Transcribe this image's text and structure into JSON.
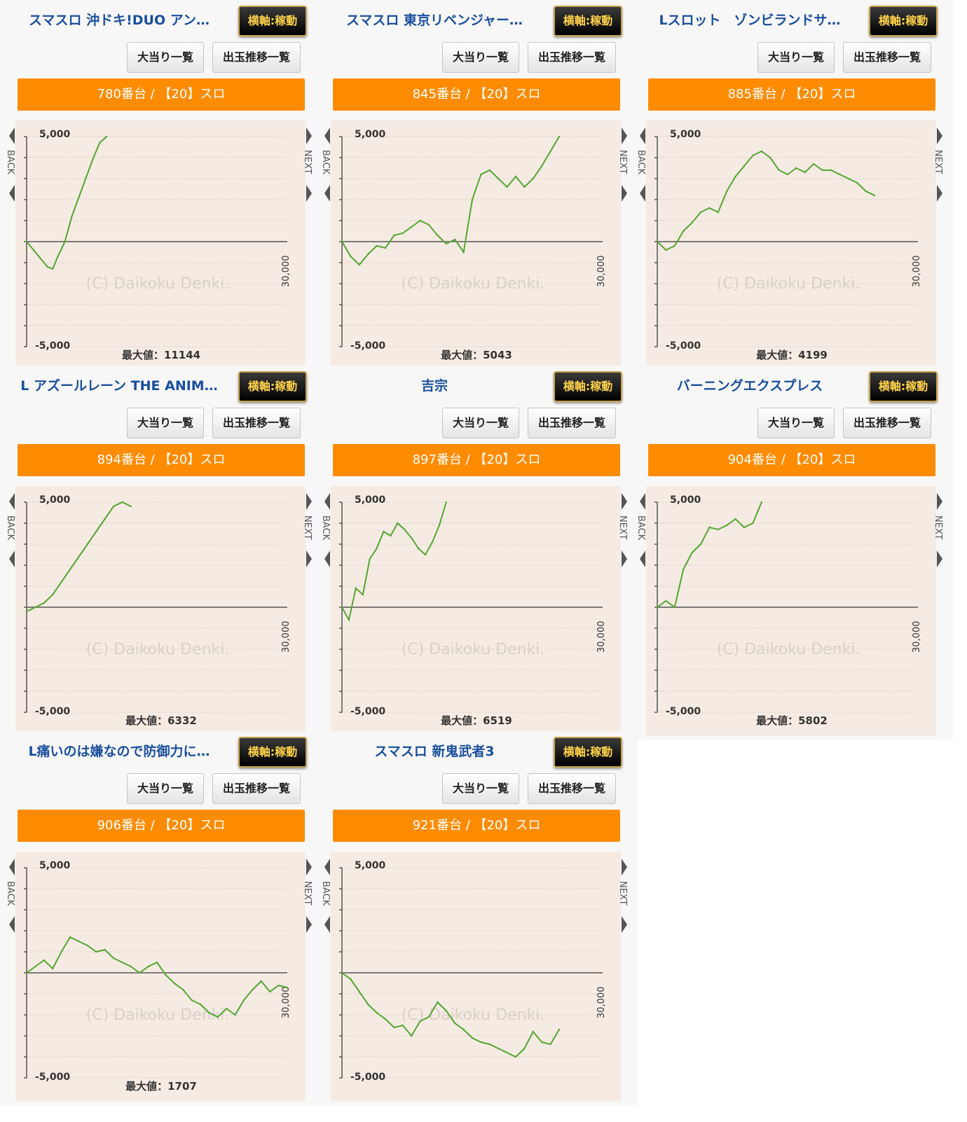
{
  "labels": {
    "axis_toggle": "横軸:稼動",
    "hits_list": "大当り一覧",
    "transition_list": "出玉推移一覧",
    "back": "BACK",
    "next": "NEXT",
    "watermark": "(C) Daikoku Denki.",
    "y_max": "5,000",
    "y_min": "-5,000",
    "x_max": "30,000",
    "max_value_prefix": "最大値："
  },
  "colors": {
    "accent_orange": "#ff8c00",
    "title_blue": "#1a4f9c",
    "line_green": "#55a532",
    "graph_bg": "#f5ebe2"
  },
  "machines": [
    {
      "title": "スマスロ 沖ドキ!DUO アン…",
      "machine_no": "780番台 / 【20】スロ",
      "max_value": "11144"
    },
    {
      "title": "スマスロ 東京リベンジャー…",
      "machine_no": "845番台 / 【20】スロ",
      "max_value": "5043"
    },
    {
      "title": "Lスロット　ゾンビランドサ…",
      "machine_no": "885番台 / 【20】スロ",
      "max_value": "4199"
    },
    {
      "title": "L アズールレーン THE ANIM…",
      "machine_no": "894番台 / 【20】スロ",
      "max_value": "6332"
    },
    {
      "title": "吉宗",
      "machine_no": "897番台 / 【20】スロ",
      "max_value": "6519"
    },
    {
      "title": "バーニングエクスプレス",
      "machine_no": "904番台 / 【20】スロ",
      "max_value": "5802"
    },
    {
      "title": "L痛いのは嫌なので防御力に…",
      "machine_no": "906番台 / 【20】スロ",
      "max_value": "1707"
    },
    {
      "title": "スマスロ 新鬼武者3",
      "machine_no": "921番台 / 【20】スロ",
      "max_value": ""
    }
  ],
  "chart_data": [
    {
      "type": "line",
      "xlim": [
        0,
        30000
      ],
      "ylim": [
        -5000,
        5000
      ],
      "grid": true,
      "series": [
        {
          "x": [
            0,
            800,
            1600,
            2400,
            3000,
            3600,
            4400,
            5200,
            6000,
            6800,
            7600,
            8400,
            9200
          ],
          "values": [
            0,
            -400,
            -800,
            -1200,
            -1300,
            -700,
            0,
            1200,
            2100,
            3000,
            3900,
            4700,
            5000
          ]
        }
      ]
    },
    {
      "type": "line",
      "xlim": [
        0,
        30000
      ],
      "ylim": [
        -5000,
        5000
      ],
      "grid": true,
      "series": [
        {
          "x": [
            0,
            1000,
            2000,
            3000,
            4000,
            5000,
            6000,
            7000,
            8000,
            9000,
            10000,
            11000,
            12000,
            13000,
            14000,
            15000,
            16000,
            17000,
            18000,
            19000,
            20000,
            21000,
            22000,
            23000,
            24000,
            25000
          ],
          "values": [
            0,
            -700,
            -1100,
            -600,
            -200,
            -300,
            300,
            400,
            700,
            1000,
            800,
            300,
            -100,
            100,
            -500,
            2000,
            3200,
            3400,
            3000,
            2600,
            3100,
            2600,
            3000,
            3600,
            4300,
            5000
          ]
        }
      ]
    },
    {
      "type": "line",
      "xlim": [
        0,
        30000
      ],
      "ylim": [
        -5000,
        5000
      ],
      "grid": true,
      "series": [
        {
          "x": [
            0,
            1000,
            2000,
            3000,
            4000,
            5000,
            6000,
            7000,
            8000,
            9000,
            10000,
            11000,
            12000,
            13000,
            14000,
            15000,
            16000,
            17000,
            18000,
            19000,
            20000,
            21000,
            22000,
            23000,
            24000,
            25000
          ],
          "values": [
            0,
            -400,
            -200,
            500,
            900,
            1400,
            1600,
            1400,
            2400,
            3100,
            3600,
            4100,
            4300,
            4000,
            3400,
            3200,
            3500,
            3300,
            3700,
            3400,
            3400,
            3200,
            3000,
            2800,
            2400,
            2200
          ]
        }
      ]
    },
    {
      "type": "line",
      "xlim": [
        0,
        30000
      ],
      "ylim": [
        -5000,
        5000
      ],
      "grid": true,
      "series": [
        {
          "x": [
            0,
            1000,
            2000,
            3000,
            4000,
            5000,
            6000,
            7000,
            8000,
            9000,
            10000,
            11000,
            12000
          ],
          "values": [
            -200,
            0,
            200,
            600,
            1200,
            1800,
            2400,
            3000,
            3600,
            4200,
            4800,
            5000,
            4800
          ]
        }
      ]
    },
    {
      "type": "line",
      "xlim": [
        0,
        30000
      ],
      "ylim": [
        -5000,
        5000
      ],
      "grid": true,
      "series": [
        {
          "x": [
            0,
            800,
            1600,
            2400,
            3200,
            4000,
            4800,
            5600,
            6400,
            7200,
            8000,
            8800,
            9600,
            10400,
            11200,
            12000
          ],
          "values": [
            0,
            -600,
            900,
            600,
            2300,
            2800,
            3600,
            3400,
            4000,
            3700,
            3300,
            2800,
            2500,
            3100,
            3900,
            5000
          ]
        }
      ]
    },
    {
      "type": "line",
      "xlim": [
        0,
        30000
      ],
      "ylim": [
        -5000,
        5000
      ],
      "grid": true,
      "series": [
        {
          "x": [
            0,
            1000,
            2000,
            3000,
            4000,
            5000,
            6000,
            7000,
            8000,
            9000,
            10000,
            11000,
            12000
          ],
          "values": [
            0,
            300,
            0,
            1800,
            2600,
            3000,
            3800,
            3700,
            3900,
            4200,
            3800,
            4000,
            5000
          ]
        }
      ]
    },
    {
      "type": "line",
      "xlim": [
        0,
        30000
      ],
      "ylim": [
        -5000,
        5000
      ],
      "grid": true,
      "series": [
        {
          "x": [
            0,
            1000,
            2000,
            3000,
            4000,
            5000,
            6000,
            7000,
            8000,
            9000,
            10000,
            11000,
            12000,
            13000,
            14000,
            15000,
            16000,
            17000,
            18000,
            19000,
            20000,
            21000,
            22000,
            23000,
            24000,
            25000,
            26000,
            27000,
            28000,
            29000,
            30000
          ],
          "values": [
            0,
            300,
            600,
            200,
            1000,
            1700,
            1500,
            1300,
            1000,
            1100,
            700,
            500,
            300,
            0,
            300,
            500,
            -100,
            -500,
            -800,
            -1300,
            -1500,
            -1900,
            -2100,
            -1700,
            -2000,
            -1300,
            -800,
            -400,
            -900,
            -600,
            -700
          ]
        }
      ]
    },
    {
      "type": "line",
      "xlim": [
        0,
        30000
      ],
      "ylim": [
        -5000,
        5000
      ],
      "grid": true,
      "series": [
        {
          "x": [
            0,
            1000,
            2000,
            3000,
            4000,
            5000,
            6000,
            7000,
            8000,
            9000,
            10000,
            11000,
            12000,
            13000,
            14000,
            15000,
            16000,
            17000,
            18000,
            19000,
            20000,
            21000,
            22000,
            23000,
            24000,
            25000
          ],
          "values": [
            0,
            -300,
            -900,
            -1500,
            -1900,
            -2200,
            -2600,
            -2500,
            -3000,
            -2300,
            -2100,
            -1400,
            -1800,
            -2400,
            -2700,
            -3100,
            -3300,
            -3400,
            -3600,
            -3800,
            -4000,
            -3600,
            -2800,
            -3300,
            -3400,
            -2700
          ]
        }
      ]
    }
  ]
}
